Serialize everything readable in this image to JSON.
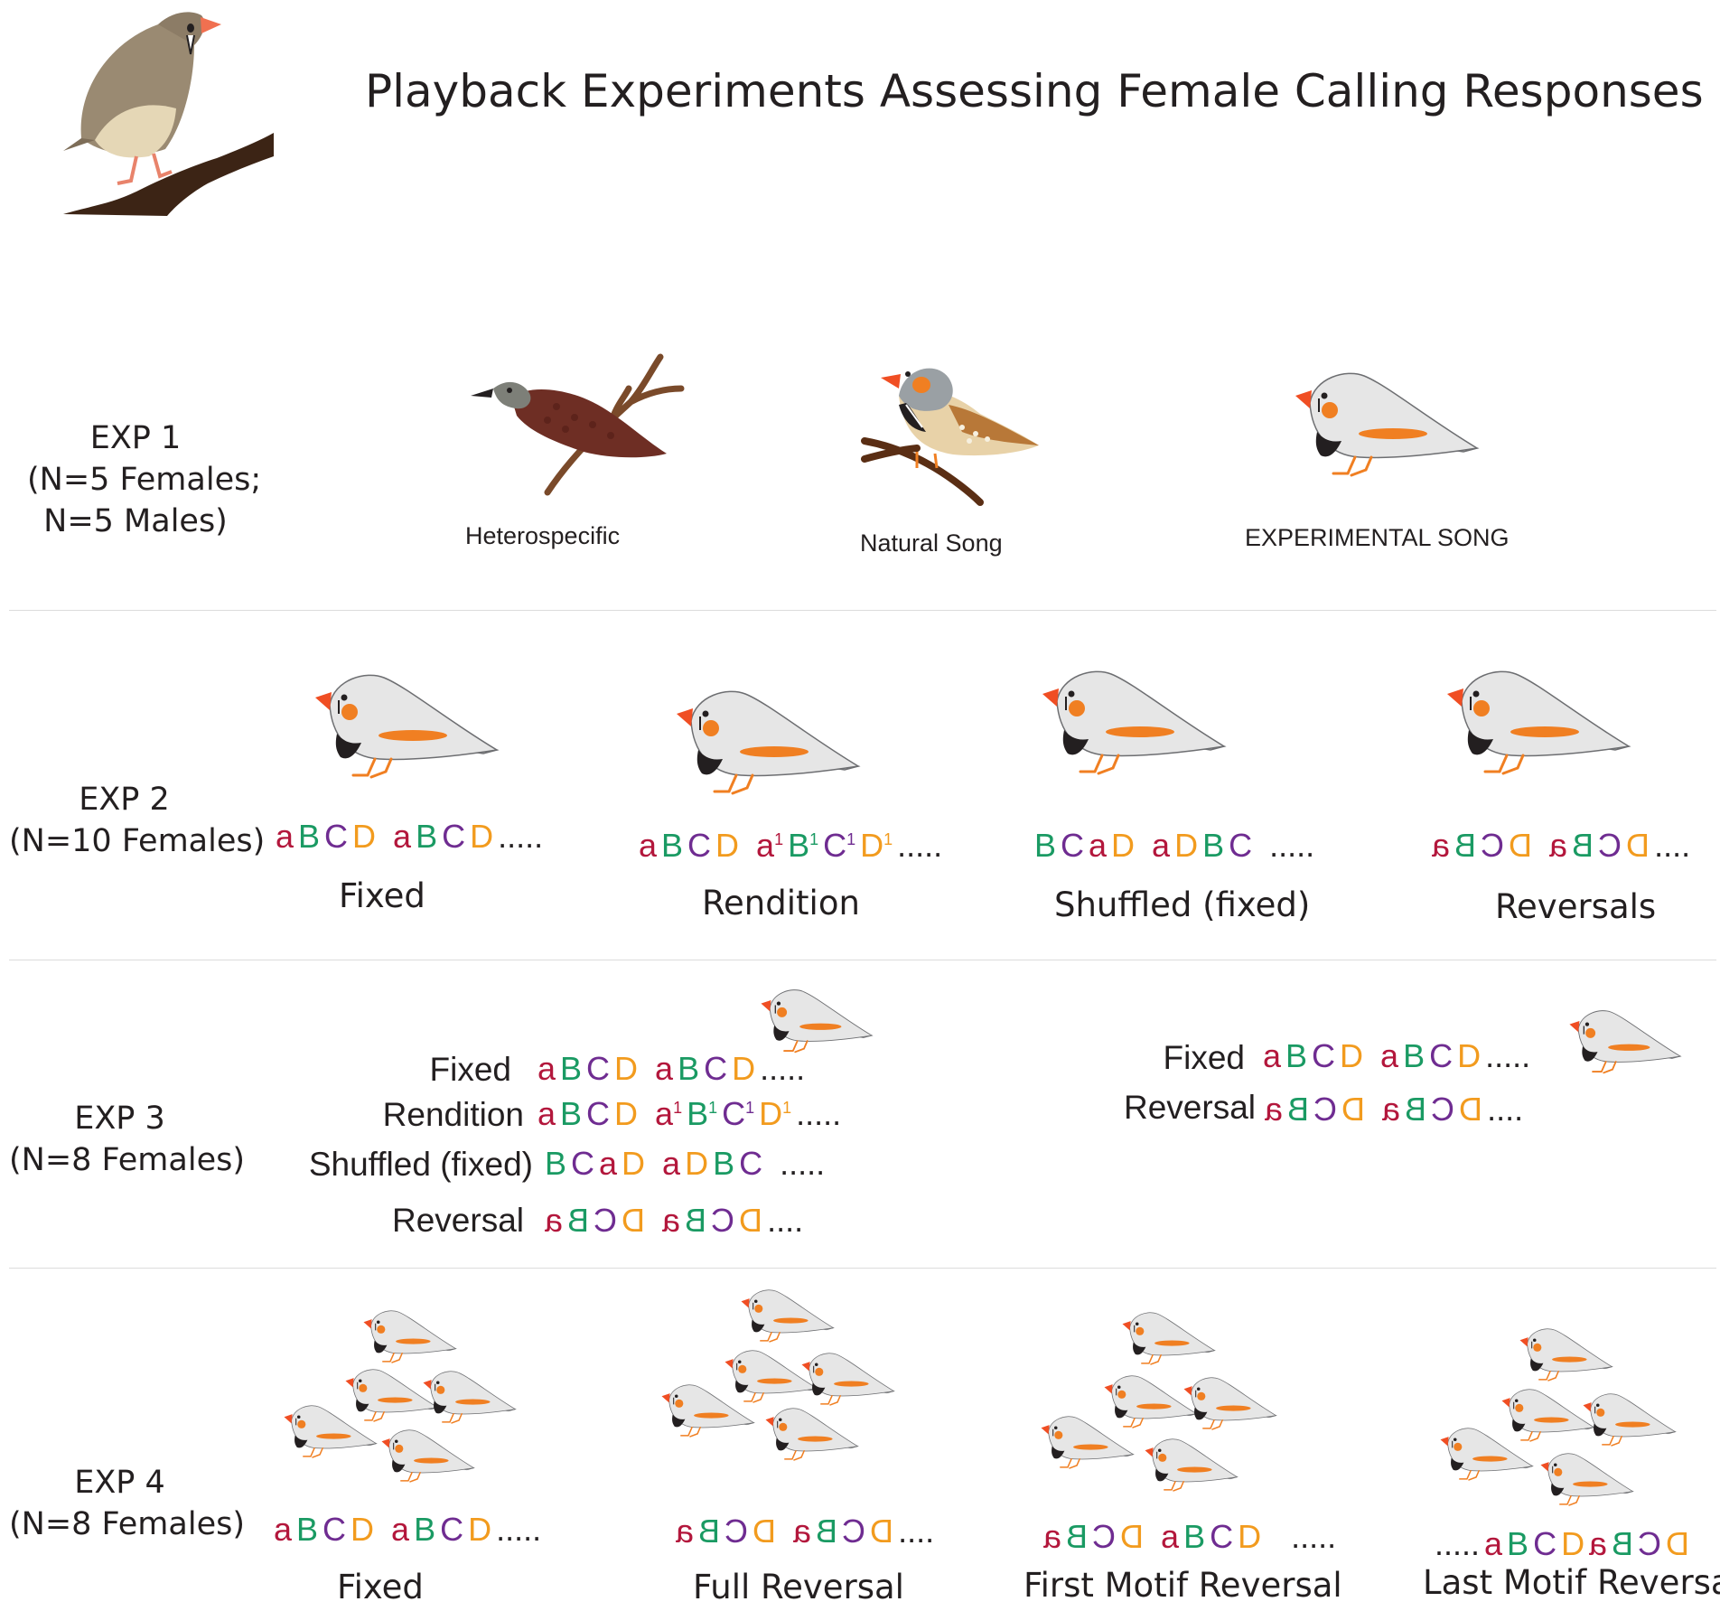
{
  "title": "Playback Experiments Assessing Female Calling Responses",
  "icons": {
    "header_bird": "zebra-finch-female-on-branch-icon",
    "heterospecific": "heterospecific-bird-icon",
    "natural": "zebra-finch-male-icon",
    "experimental": "stylized-zebra-finch-icon"
  },
  "colors": {
    "a": "#b3173c",
    "B": "#1a9a63",
    "C": "#6f2c91",
    "D": "#f29b1e"
  },
  "exp1": {
    "label": [
      "EXP 1",
      "(N=5 Females;",
      "N=5 Males)"
    ],
    "stimuli": [
      "Heterospecific",
      "Natural Song",
      "EXPERIMENTAL SONG"
    ]
  },
  "exp2": {
    "label": [
      "EXP 2",
      "(N=10 Females)"
    ],
    "conditions": [
      "Fixed",
      "Rendition",
      "Shuffled (fixed)",
      "Reversals"
    ],
    "sequences": [
      "a B C D  a B C D .....",
      "a B C D  a¹ B¹ C¹ D¹ .....",
      "B C a D  a D B C  .....",
      "a B C D a B C D...."
    ]
  },
  "exp3": {
    "label": [
      "EXP 3",
      "(N=8 Females)"
    ],
    "left": {
      "conditions": [
        "Fixed",
        "Rendition",
        "Shuffled (fixed)",
        "Reversal"
      ],
      "sequences": [
        "a B C D  a B C D .....",
        "a B C D  a¹ B¹ C¹ D¹ .....",
        "B C a D  a D B C  .....",
        "a B C D a B C D...."
      ]
    },
    "right": {
      "conditions": [
        "Fixed",
        "Reversal"
      ],
      "sequences": [
        "a B C D  a B C D .....",
        "a B C D a B C D...."
      ]
    }
  },
  "exp4": {
    "label": [
      "EXP 4",
      "(N=8 Females)"
    ],
    "conditions": [
      "Fixed",
      "Full Reversal",
      "First Motif Reversal",
      "Last Motif Reversal"
    ],
    "sequences": [
      "a B C D  a B C D .....",
      "a B C D a B C D....",
      "a B C D  a B C D   .....",
      "..... a B C D a B C D"
    ]
  },
  "dots": ".....",
  "dots4": "...."
}
